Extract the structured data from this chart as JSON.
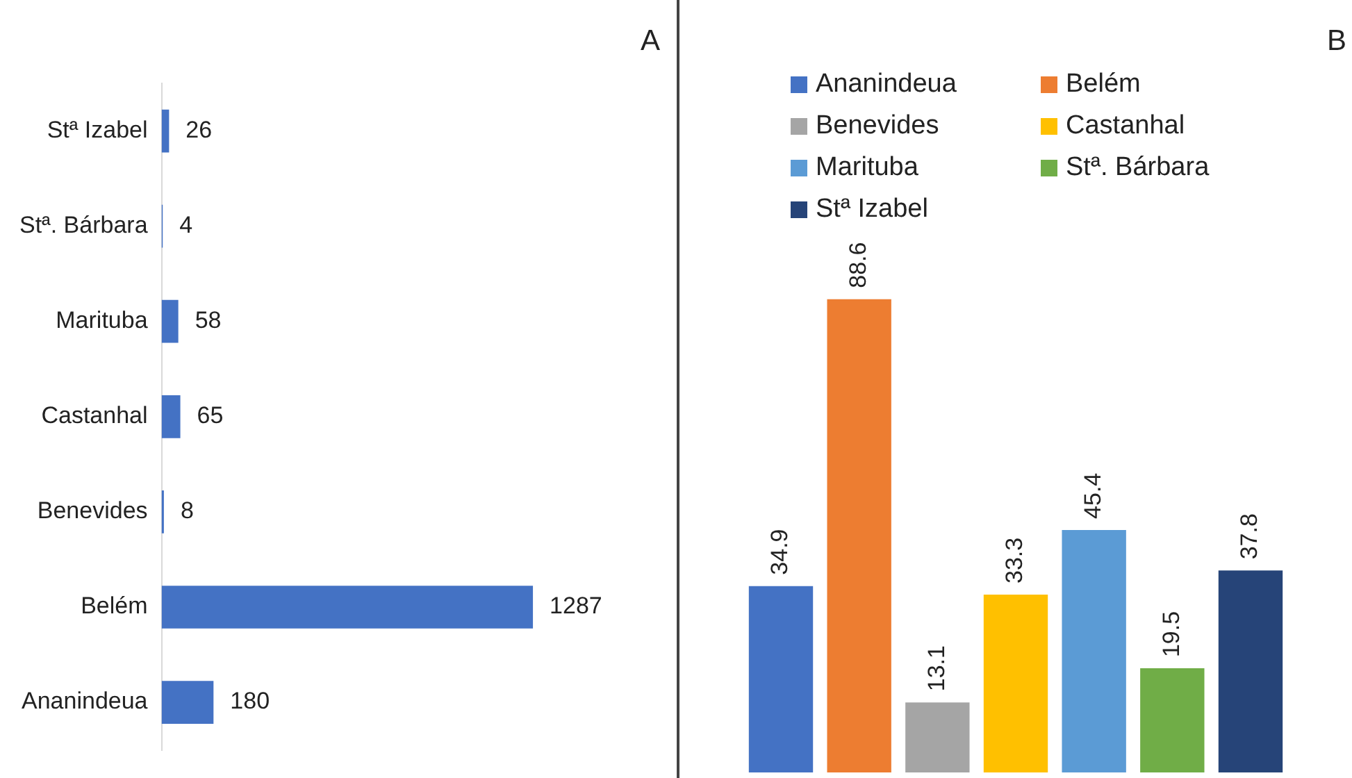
{
  "chart_data": [
    {
      "type": "bar",
      "annotations": [
        "A"
      ],
      "orientation": "horizontal",
      "categories": [
        "Stª Izabel",
        "Stª. Bárbara",
        "Marituba",
        "Castanhal",
        "Benevides",
        "Belém",
        "Ananindeua"
      ],
      "values": [
        26,
        4,
        58,
        65,
        8,
        1287,
        180
      ],
      "color": "#4472c4",
      "data_labels": true
    },
    {
      "type": "bar",
      "annotations": [
        "B"
      ],
      "categories": [
        null
      ],
      "legend": "top",
      "series": [
        {
          "name": "Ananindeua",
          "color": "#4472c4",
          "values": [
            34.9
          ]
        },
        {
          "name": "Belém",
          "color": "#ed7d31",
          "values": [
            88.6
          ]
        },
        {
          "name": "Benevides",
          "color": "#a5a5a5",
          "values": [
            13.1
          ]
        },
        {
          "name": "Castanhal",
          "color": "#ffc000",
          "values": [
            33.3
          ]
        },
        {
          "name": "Marituba",
          "color": "#5b9bd5",
          "values": [
            45.4
          ]
        },
        {
          "name": "Stª. Bárbara",
          "color": "#70ad47",
          "values": [
            19.5
          ]
        },
        {
          "name": "Stª Izabel",
          "color": "#264478",
          "values": [
            37.8
          ]
        }
      ],
      "data_labels": true
    }
  ]
}
